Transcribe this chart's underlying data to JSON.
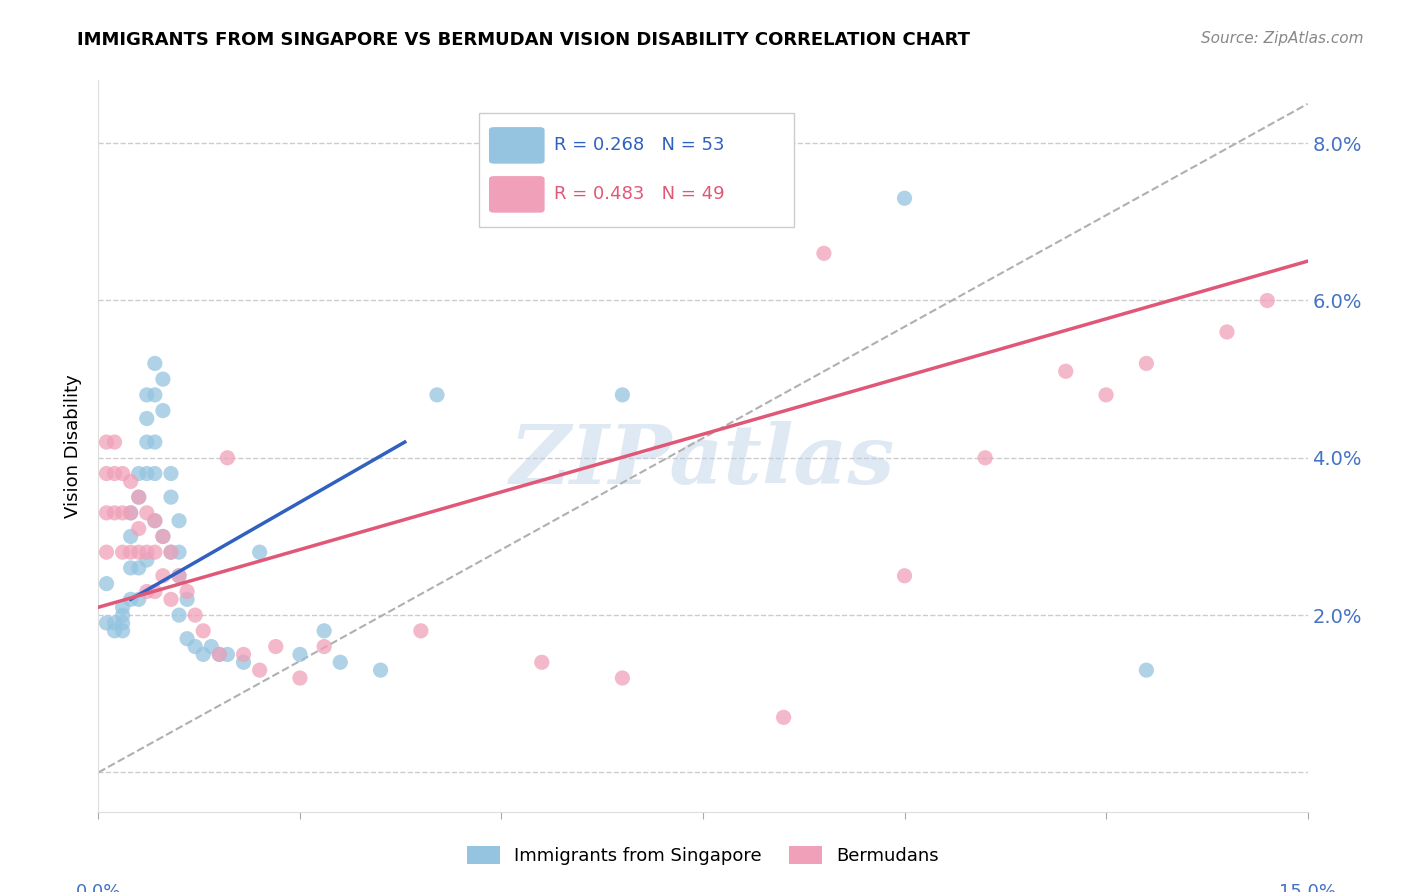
{
  "title": "IMMIGRANTS FROM SINGAPORE VS BERMUDAN VISION DISABILITY CORRELATION CHART",
  "source": "Source: ZipAtlas.com",
  "ylabel": "Vision Disability",
  "yticks": [
    0.0,
    0.02,
    0.04,
    0.06,
    0.08
  ],
  "ytick_labels": [
    "",
    "2.0%",
    "4.0%",
    "6.0%",
    "8.0%"
  ],
  "xlim": [
    0.0,
    0.15
  ],
  "ylim": [
    -0.005,
    0.088
  ],
  "color_blue": "#94c4e0",
  "color_pink": "#f0a0b8",
  "color_line_blue": "#3060c0",
  "color_line_pink": "#e05878",
  "color_dashed": "#b0b0b0",
  "color_axis_labels": "#4472c4",
  "watermark": "ZIPatlas",
  "singapore_x": [
    0.001,
    0.001,
    0.002,
    0.002,
    0.003,
    0.003,
    0.003,
    0.003,
    0.004,
    0.004,
    0.004,
    0.004,
    0.005,
    0.005,
    0.005,
    0.005,
    0.006,
    0.006,
    0.006,
    0.006,
    0.006,
    0.007,
    0.007,
    0.007,
    0.007,
    0.007,
    0.008,
    0.008,
    0.008,
    0.009,
    0.009,
    0.009,
    0.01,
    0.01,
    0.01,
    0.01,
    0.011,
    0.011,
    0.012,
    0.013,
    0.014,
    0.015,
    0.016,
    0.018,
    0.02,
    0.025,
    0.028,
    0.03,
    0.035,
    0.042,
    0.065,
    0.1,
    0.13
  ],
  "singapore_y": [
    0.024,
    0.019,
    0.019,
    0.018,
    0.021,
    0.02,
    0.019,
    0.018,
    0.033,
    0.03,
    0.026,
    0.022,
    0.038,
    0.035,
    0.026,
    0.022,
    0.048,
    0.045,
    0.042,
    0.038,
    0.027,
    0.052,
    0.048,
    0.042,
    0.038,
    0.032,
    0.05,
    0.046,
    0.03,
    0.038,
    0.035,
    0.028,
    0.032,
    0.028,
    0.025,
    0.02,
    0.022,
    0.017,
    0.016,
    0.015,
    0.016,
    0.015,
    0.015,
    0.014,
    0.028,
    0.015,
    0.018,
    0.014,
    0.013,
    0.048,
    0.048,
    0.073,
    0.013
  ],
  "bermuda_x": [
    0.001,
    0.001,
    0.001,
    0.001,
    0.002,
    0.002,
    0.002,
    0.003,
    0.003,
    0.003,
    0.004,
    0.004,
    0.004,
    0.005,
    0.005,
    0.005,
    0.006,
    0.006,
    0.006,
    0.007,
    0.007,
    0.007,
    0.008,
    0.008,
    0.009,
    0.009,
    0.01,
    0.011,
    0.012,
    0.013,
    0.015,
    0.016,
    0.018,
    0.02,
    0.022,
    0.025,
    0.028,
    0.04,
    0.055,
    0.065,
    0.085,
    0.09,
    0.1,
    0.11,
    0.12,
    0.125,
    0.13,
    0.14,
    0.145
  ],
  "bermuda_y": [
    0.042,
    0.038,
    0.033,
    0.028,
    0.042,
    0.038,
    0.033,
    0.038,
    0.033,
    0.028,
    0.037,
    0.033,
    0.028,
    0.035,
    0.031,
    0.028,
    0.033,
    0.028,
    0.023,
    0.032,
    0.028,
    0.023,
    0.03,
    0.025,
    0.028,
    0.022,
    0.025,
    0.023,
    0.02,
    0.018,
    0.015,
    0.04,
    0.015,
    0.013,
    0.016,
    0.012,
    0.016,
    0.018,
    0.014,
    0.012,
    0.007,
    0.066,
    0.025,
    0.04,
    0.051,
    0.048,
    0.052,
    0.056,
    0.06
  ],
  "blue_line_x": [
    0.004,
    0.038
  ],
  "blue_line_y": [
    0.022,
    0.042
  ],
  "pink_line_x": [
    0.0,
    0.15
  ],
  "pink_line_y": [
    0.021,
    0.065
  ],
  "dashed_line_x": [
    0.0,
    0.15
  ],
  "dashed_line_y": [
    0.0,
    0.085
  ]
}
